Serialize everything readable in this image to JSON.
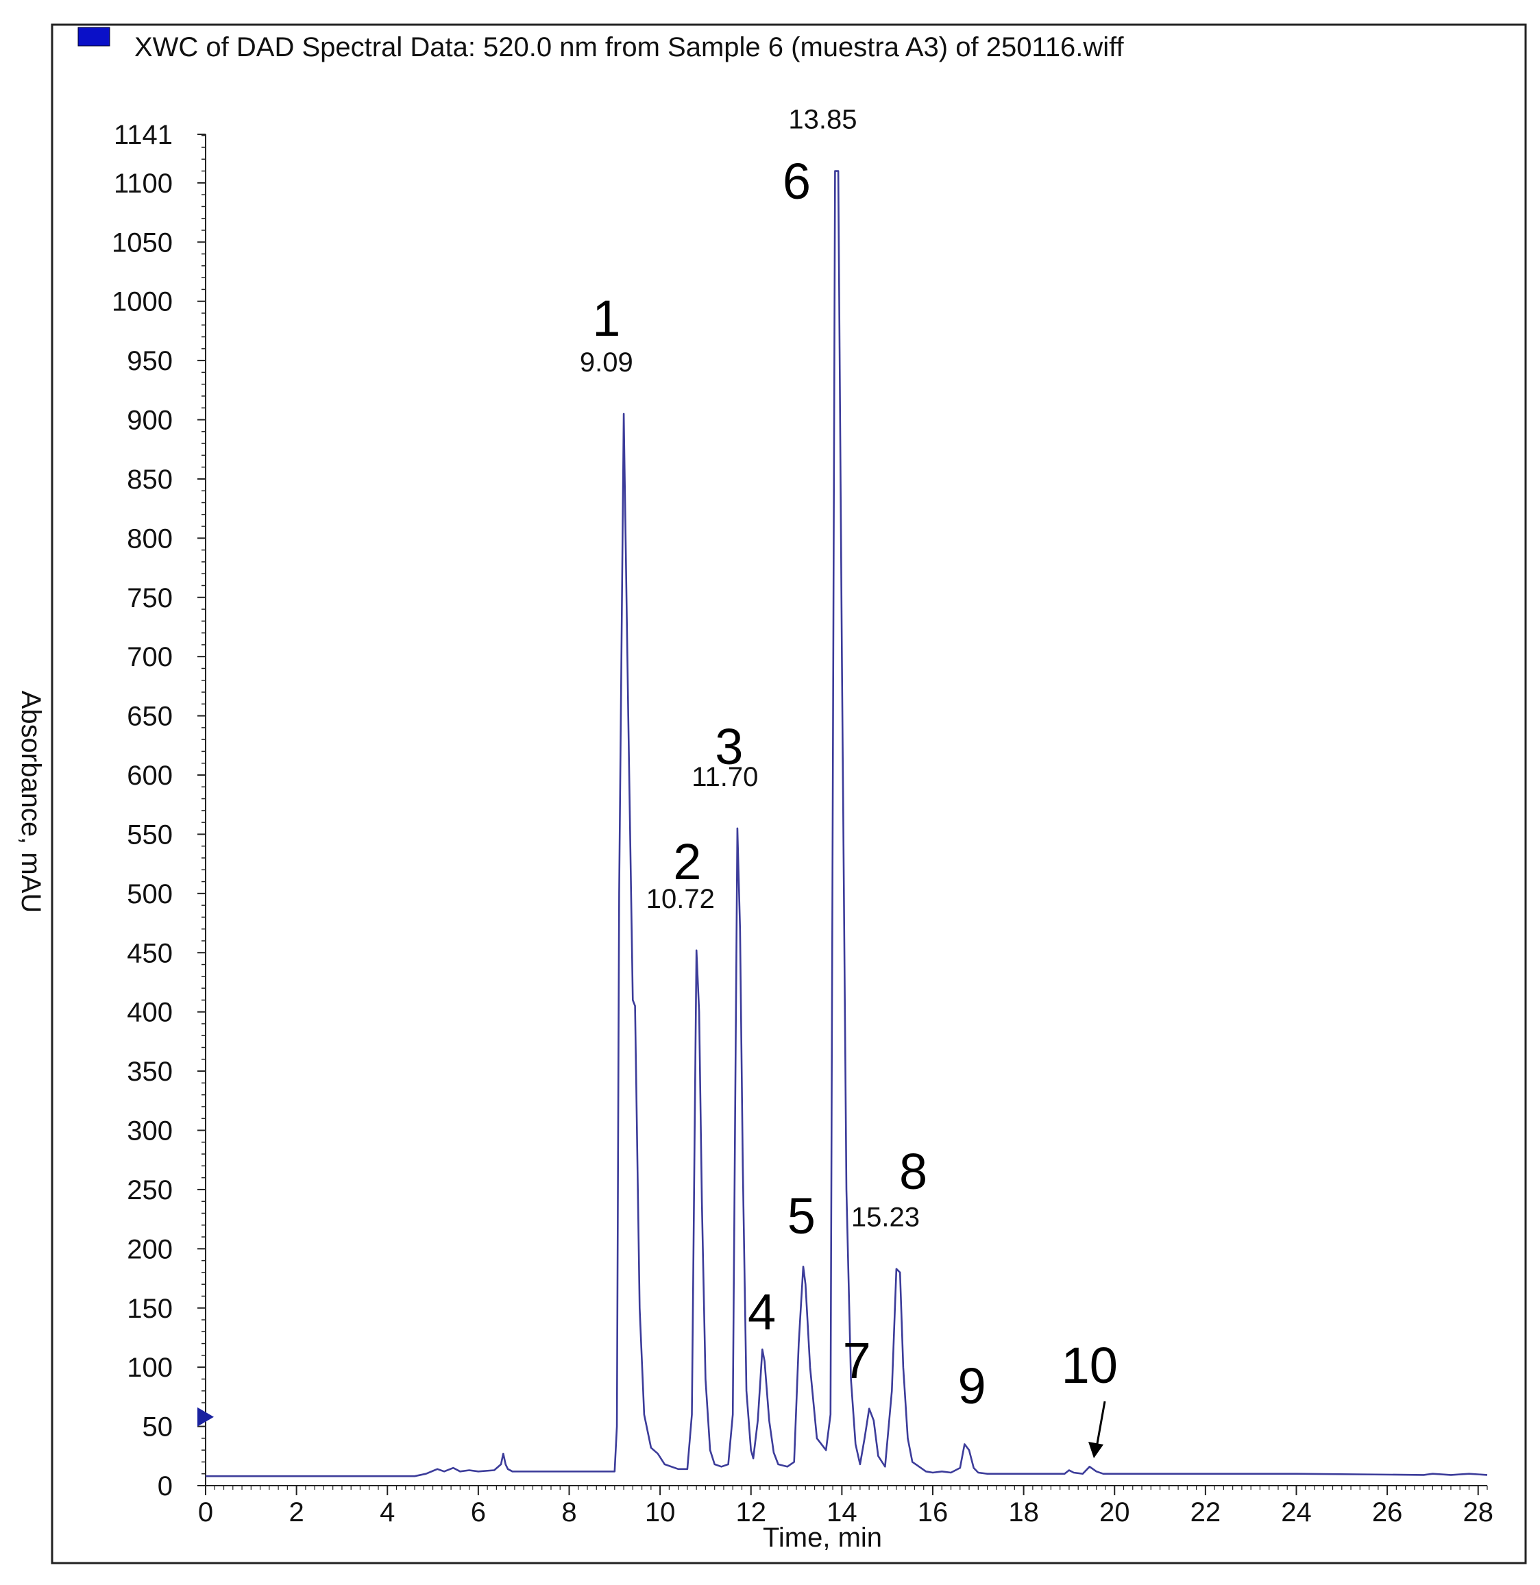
{
  "chart_data": {
    "type": "line",
    "title": "XWC of DAD Spectral Data: 520.0 nm from Sample 6 (muestra A3) of 250116.wiff",
    "xlabel": "Time, min",
    "ylabel": "Absorbance, mAU",
    "xlim": [
      0,
      28.2
    ],
    "ylim": [
      0,
      1141
    ],
    "x_ticks": [
      0,
      2,
      4,
      6,
      8,
      10,
      12,
      14,
      16,
      18,
      20,
      22,
      24,
      26,
      28
    ],
    "y_ticks": [
      0,
      50,
      100,
      150,
      200,
      250,
      300,
      350,
      400,
      450,
      500,
      550,
      600,
      650,
      700,
      750,
      800,
      850,
      900,
      950,
      1000,
      1050,
      1100,
      1141
    ],
    "grid": false,
    "legend": "top-left",
    "series": [
      {
        "name": "XWC of DAD Spectral Data: 520.0 nm from Sample 6 (muestra A3) of 250116.wiff",
        "color": "#3c3c9a",
        "x": [
          0,
          4.6,
          4.85,
          5.1,
          5.25,
          5.45,
          5.6,
          5.8,
          6.0,
          6.35,
          6.5,
          6.55,
          6.6,
          6.65,
          6.75,
          6.9,
          7.5,
          8.5,
          9.0,
          9.05,
          9.1,
          9.2,
          9.3,
          9.4,
          9.45,
          9.55,
          9.65,
          9.8,
          9.95,
          10.1,
          10.4,
          10.6,
          10.7,
          10.8,
          10.86,
          10.92,
          11.0,
          11.1,
          11.2,
          11.35,
          11.5,
          11.6,
          11.7,
          11.76,
          11.82,
          11.9,
          12.0,
          12.05,
          12.15,
          12.25,
          12.3,
          12.4,
          12.5,
          12.6,
          12.8,
          12.95,
          13.05,
          13.15,
          13.2,
          13.3,
          13.45,
          13.65,
          13.75,
          13.85,
          13.92,
          14.0,
          14.1,
          14.2,
          14.3,
          14.4,
          14.5,
          14.6,
          14.7,
          14.8,
          14.95,
          15.1,
          15.2,
          15.28,
          15.35,
          15.45,
          15.55,
          15.7,
          15.85,
          16.0,
          16.2,
          16.4,
          16.6,
          16.7,
          16.8,
          16.9,
          17.0,
          17.2,
          18.5,
          18.9,
          19.0,
          19.1,
          19.3,
          19.45,
          19.6,
          19.75,
          20.0,
          24.0,
          26.8,
          27.0,
          27.4,
          27.8,
          28.2
        ],
        "y": [
          8,
          8,
          10,
          14,
          12,
          15,
          12,
          13,
          12,
          13,
          18,
          27,
          18,
          14,
          12,
          12,
          12,
          12,
          12,
          50,
          500,
          905,
          650,
          410,
          405,
          150,
          60,
          32,
          27,
          18,
          14,
          14,
          60,
          452,
          400,
          240,
          90,
          30,
          18,
          16,
          18,
          60,
          555,
          470,
          270,
          80,
          30,
          23,
          55,
          115,
          105,
          55,
          28,
          18,
          16,
          20,
          120,
          185,
          170,
          100,
          40,
          30,
          60,
          1110,
          1110,
          700,
          250,
          90,
          35,
          18,
          40,
          65,
          55,
          25,
          16,
          80,
          183,
          180,
          100,
          40,
          20,
          16,
          12,
          11,
          12,
          11,
          15,
          35,
          30,
          15,
          11,
          10,
          10,
          10,
          13,
          11,
          10,
          16,
          12,
          10,
          10,
          10,
          9,
          10,
          9,
          10,
          9
        ]
      }
    ],
    "retention_labels": [
      {
        "x": 9.09,
        "y": 905,
        "text": "9.09"
      },
      {
        "x": 10.72,
        "y": 452,
        "text": "10.72"
      },
      {
        "x": 11.7,
        "y": 555,
        "text": "11.70"
      },
      {
        "x": 13.85,
        "y": 1110,
        "text": "13.85"
      },
      {
        "x": 15.23,
        "y": 183,
        "text": "15.23"
      }
    ],
    "peak_numbers": [
      {
        "x": 9.09,
        "text": "1"
      },
      {
        "x": 10.72,
        "text": "2"
      },
      {
        "x": 11.7,
        "text": "3"
      },
      {
        "x": 12.3,
        "text": "4"
      },
      {
        "x": 13.2,
        "text": "5"
      },
      {
        "x": 13.85,
        "text": "6"
      },
      {
        "x": 14.6,
        "text": "7"
      },
      {
        "x": 15.3,
        "text": "8"
      },
      {
        "x": 16.8,
        "text": "9"
      },
      {
        "x": 19.45,
        "text": "10"
      }
    ],
    "baseline_marker_y": 58
  }
}
